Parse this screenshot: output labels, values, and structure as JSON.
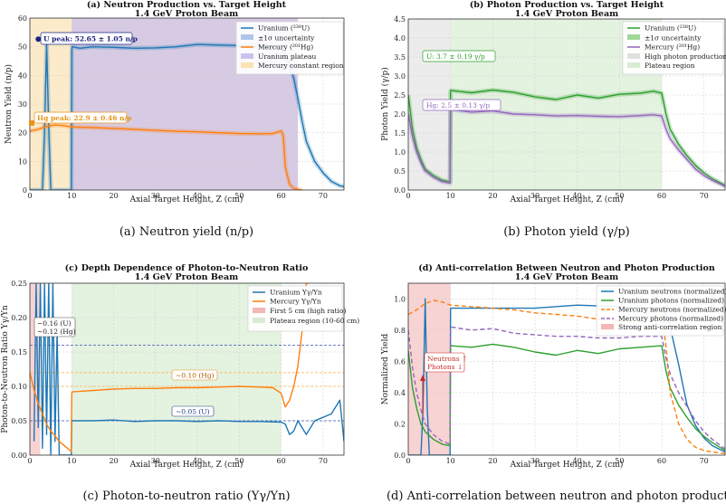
{
  "chart_data": [
    {
      "type": "line",
      "panel_id": "a",
      "title": "(a) Neutron Production vs. Target Height",
      "subtitle": "1.4 GeV Proton Beam",
      "xlabel": "Axial Target Height, Z (cm)",
      "ylabel": "Neutron Yield (n/p)",
      "xlim": [
        0,
        75
      ],
      "ylim": [
        0,
        60
      ],
      "xticks": [
        "0",
        "10",
        "20",
        "30",
        "40",
        "50",
        "60",
        "70"
      ],
      "yticks": [
        "0",
        "10",
        "20",
        "30",
        "40",
        "50",
        "60"
      ],
      "grid": true,
      "legend_position": "top-right",
      "series": [
        {
          "name": "Uranium (²³⁸U)",
          "color": "#1f77b4",
          "x": [
            0,
            1,
            2,
            3,
            3.5,
            4,
            4.5,
            5,
            6,
            8,
            9.5,
            9.9,
            10,
            10.1,
            12,
            15,
            20,
            25,
            30,
            35,
            40,
            45,
            50,
            55,
            60,
            61,
            62,
            63,
            64,
            65,
            66,
            68,
            70,
            72,
            74,
            75
          ],
          "y": [
            0,
            0,
            0,
            0,
            20,
            51.5,
            22,
            0,
            0,
            0,
            0,
            0,
            49,
            50,
            49.5,
            50,
            49.8,
            49.5,
            49.6,
            50,
            50.8,
            50.6,
            50.4,
            50.1,
            49.6,
            47,
            44,
            39,
            32,
            24,
            17,
            10,
            6,
            3,
            1.5,
            1.2
          ]
        },
        {
          "name": "Mercury (²⁰¹Hg)",
          "color": "#ff7f0e",
          "x": [
            0,
            2,
            4,
            6,
            8,
            10,
            15,
            20,
            25,
            30,
            35,
            40,
            45,
            50,
            55,
            58,
            60,
            60.5,
            61,
            62,
            63,
            64,
            65
          ],
          "y": [
            20.6,
            21.2,
            22.2,
            22.7,
            22.5,
            22,
            21.8,
            21.5,
            21.2,
            20.8,
            20.5,
            20.3,
            20.0,
            19.7,
            19.6,
            19.7,
            20.6,
            19,
            8,
            2,
            0.6,
            0.2,
            0
          ]
        }
      ],
      "bands": [
        {
          "name": "±1σ uncertainty",
          "color": "#aec7e8"
        },
        {
          "name": "Uranium plateau",
          "x": [
            10,
            64
          ],
          "color": "#8c6bb1"
        },
        {
          "name": "Mercury constant region",
          "x": [
            0,
            10
          ],
          "color": "#fbe3b4"
        }
      ],
      "annotations": [
        {
          "text": "U peak: 52.65 ± 1.05 n/p",
          "x": 4,
          "y": 52.6,
          "color": "#1a237e"
        },
        {
          "text": "Hg peak: 22.9 ± 0.46 n/p",
          "x": 1,
          "y": 22.9,
          "color": "#e69520"
        }
      ]
    },
    {
      "type": "line",
      "panel_id": "b",
      "title": "(b) Photon Production vs. Target Height",
      "subtitle": "1.4 GeV Proton Beam",
      "xlabel": "Axial Target Height, Z (cm)",
      "ylabel": "Photon Yield (γ/p)",
      "xlim": [
        0,
        75
      ],
      "ylim": [
        0,
        4.5
      ],
      "xticks": [
        "0",
        "10",
        "20",
        "30",
        "40",
        "50",
        "60",
        "70"
      ],
      "yticks": [
        "0.0",
        "0.5",
        "1.0",
        "1.5",
        "2.0",
        "2.5",
        "3.0",
        "3.5",
        "4.0",
        "4.5"
      ],
      "grid": true,
      "legend_position": "top-right",
      "series": [
        {
          "name": "Uranium (²³⁸U)",
          "color": "#2ca02c",
          "x": [
            0,
            1,
            2,
            3,
            4,
            6,
            8,
            9.9,
            10,
            10.1,
            15,
            20,
            25,
            30,
            35,
            40,
            45,
            50,
            55,
            58,
            60,
            61,
            62,
            64,
            66,
            68,
            70,
            72,
            75
          ],
          "y": [
            2.5,
            1.6,
            1.1,
            0.8,
            0.55,
            0.38,
            0.26,
            0.22,
            2.6,
            2.62,
            2.56,
            2.63,
            2.57,
            2.45,
            2.38,
            2.5,
            2.42,
            2.52,
            2.55,
            2.6,
            2.55,
            2.0,
            1.6,
            1.2,
            0.9,
            0.65,
            0.45,
            0.3,
            0.12
          ]
        },
        {
          "name": "Mercury (²⁰¹Hg)",
          "color": "#9467bd",
          "x": [
            0,
            1,
            2,
            3,
            4,
            6,
            8,
            9.9,
            10,
            10.1,
            15,
            20,
            25,
            30,
            35,
            40,
            45,
            50,
            55,
            58,
            60,
            61,
            62,
            64,
            66,
            68,
            70,
            72,
            75
          ],
          "y": [
            2.0,
            1.4,
            1.0,
            0.72,
            0.5,
            0.33,
            0.22,
            0.18,
            2.1,
            2.12,
            2.05,
            2.08,
            2.0,
            1.98,
            1.95,
            1.96,
            1.94,
            1.93,
            1.96,
            1.98,
            1.95,
            1.6,
            1.35,
            1.05,
            0.8,
            0.55,
            0.38,
            0.25,
            0.1
          ]
        }
      ],
      "bands": [
        {
          "name": "±1σ uncertainty",
          "color": "#a1d99b"
        },
        {
          "name": "High photon production",
          "x": [
            0,
            10
          ],
          "color": "#e0e0e0"
        },
        {
          "name": "Plateau region",
          "x": [
            10,
            60
          ],
          "color": "#d8ecd3"
        }
      ],
      "annotations": [
        {
          "text": "U: 3.7 ± 0.19 γ/p",
          "x": 1,
          "y": 3.3,
          "color": "#2ca02c"
        },
        {
          "text": "Hg: 2.5 ± 0.13 γ/p",
          "x": 1,
          "y": 2.1,
          "color": "#9467bd"
        }
      ]
    },
    {
      "type": "line",
      "panel_id": "c",
      "title": "(c) Depth Dependence of Photon-to-Neutron Ratio",
      "subtitle": "1.4 GeV Proton Beam",
      "xlabel": "Axial Target Height, Z (cm)",
      "ylabel": "Photon-to-Neutron Ratio Yγ/Yn",
      "xlim": [
        0,
        75
      ],
      "ylim": [
        0,
        0.25
      ],
      "xticks": [
        "0",
        "10",
        "20",
        "30",
        "40",
        "50",
        "60",
        "70"
      ],
      "yticks": [
        "0.00",
        "0.05",
        "0.10",
        "0.15",
        "0.20",
        "0.25"
      ],
      "grid": true,
      "legend_position": "top-right",
      "series": [
        {
          "name": "Uranium Yγ/Yn",
          "color": "#1f77b4",
          "x": [
            1,
            1.5,
            2,
            2.5,
            3,
            3.5,
            4,
            4.5,
            5,
            5.5,
            6,
            6.5,
            7,
            9.9,
            10,
            10.1,
            15,
            20,
            25,
            30,
            35,
            40,
            45,
            50,
            55,
            60,
            61,
            62,
            63,
            64,
            65,
            66,
            68,
            70,
            72,
            74,
            75
          ],
          "y": [
            0.02,
            0.25,
            0.04,
            0.25,
            0.01,
            0.25,
            0.03,
            0.25,
            0.0,
            0.25,
            0.02,
            0.18,
            0.0,
            0.0,
            0.048,
            0.05,
            0.05,
            0.051,
            0.049,
            0.05,
            0.05,
            0.049,
            0.05,
            0.049,
            0.049,
            0.048,
            0.045,
            0.03,
            0.035,
            0.05,
            0.04,
            0.03,
            0.05,
            0.055,
            0.06,
            0.08,
            0.02
          ]
        },
        {
          "name": "Mercury Yγ/Yn",
          "color": "#ff7f0e",
          "x": [
            0,
            1,
            2,
            3,
            4,
            5,
            6,
            7,
            8,
            9,
            9.9,
            10,
            10.1,
            15,
            20,
            25,
            30,
            35,
            40,
            45,
            50,
            55,
            58,
            60,
            61,
            62,
            63,
            64,
            65,
            65.5,
            66,
            66.5
          ],
          "y": [
            0.12,
            0.095,
            0.075,
            0.06,
            0.045,
            0.035,
            0.028,
            0.02,
            0.015,
            0.01,
            0.005,
            0.09,
            0.092,
            0.094,
            0.096,
            0.097,
            0.097,
            0.098,
            0.098,
            0.099,
            0.1,
            0.099,
            0.098,
            0.09,
            0.07,
            0.08,
            0.1,
            0.13,
            0.18,
            0.22,
            0.25,
            0.25
          ]
        }
      ],
      "reference_lines": [
        {
          "y": 0.16,
          "color": "#3f51b5"
        },
        {
          "y": 0.12,
          "color": "#ffb74d"
        },
        {
          "y": 0.1,
          "color": "#ffb74d"
        },
        {
          "y": 0.05,
          "color": "#3f51b5"
        }
      ],
      "bands": [
        {
          "name": "First 5 cm (high ratio)",
          "x": [
            0,
            2.5
          ],
          "color": "#f4b6b6"
        },
        {
          "name": "Plateau region (10-60 cm)",
          "x": [
            10,
            60
          ],
          "color": "#d8ecd3"
        }
      ],
      "annotations": [
        {
          "text": "~0.16 (U)",
          "x": 1.5,
          "y": 0.17,
          "color": "#222222"
        },
        {
          "text": "~0.12 (Hg)",
          "x": 1.5,
          "y": 0.16,
          "color": "#222222"
        },
        {
          "text": "~0.10 (Hg)",
          "x": 33,
          "y": 0.107,
          "color": "#b35900"
        },
        {
          "text": "~0.05 (U)",
          "x": 33,
          "y": 0.057,
          "color": "#1f3a8a"
        }
      ]
    },
    {
      "type": "line",
      "panel_id": "d",
      "title": "(d) Anti-correlation Between Neutron and Photon Production",
      "subtitle": "1.4 GeV Proton Beam",
      "xlabel": "Axial Target Height, Z (cm)",
      "ylabel": "Normalized Yield",
      "xlim": [
        0,
        75
      ],
      "ylim": [
        0,
        1.1
      ],
      "xticks": [
        "0",
        "10",
        "20",
        "30",
        "40",
        "50",
        "60",
        "70"
      ],
      "yticks": [
        "0.0",
        "0.2",
        "0.4",
        "0.6",
        "0.8",
        "1.0"
      ],
      "grid": true,
      "legend_position": "top-right",
      "series": [
        {
          "name": "Uranium neutrons (normalized)",
          "color": "#1f77b4",
          "dash": "solid",
          "x": [
            0,
            3,
            3.5,
            4,
            4.5,
            5,
            9.9,
            10,
            10.1,
            20,
            30,
            40,
            50,
            60,
            61,
            62,
            63,
            64,
            65,
            66,
            68,
            70,
            72,
            75
          ],
          "y": [
            0,
            0,
            0.3,
            1.0,
            0.3,
            0,
            0,
            0.93,
            0.94,
            0.94,
            0.94,
            0.96,
            0.95,
            0.94,
            0.9,
            0.82,
            0.7,
            0.58,
            0.45,
            0.32,
            0.19,
            0.11,
            0.06,
            0.02
          ]
        },
        {
          "name": "Uranium photons (normalized)",
          "color": "#2ca02c",
          "dash": "solid",
          "x": [
            0,
            1,
            2,
            3,
            4,
            6,
            8,
            9.9,
            10,
            10.1,
            15,
            20,
            25,
            30,
            35,
            40,
            45,
            50,
            55,
            60,
            61,
            62,
            64,
            66,
            68,
            70,
            72,
            75
          ],
          "y": [
            0.67,
            0.43,
            0.3,
            0.2,
            0.15,
            0.1,
            0.07,
            0.06,
            0.7,
            0.7,
            0.69,
            0.71,
            0.69,
            0.66,
            0.64,
            0.67,
            0.65,
            0.68,
            0.69,
            0.7,
            0.54,
            0.43,
            0.32,
            0.24,
            0.17,
            0.12,
            0.08,
            0.03
          ]
        },
        {
          "name": "Mercury neutrons (normalized)",
          "color": "#ff7f0e",
          "dash": "dashed",
          "x": [
            0,
            2,
            4,
            6,
            8,
            10,
            15,
            20,
            25,
            30,
            35,
            40,
            45,
            50,
            55,
            58,
            60,
            61,
            62,
            64,
            66,
            68,
            70,
            72,
            75
          ],
          "y": [
            0.9,
            0.93,
            0.97,
            0.99,
            0.98,
            0.96,
            0.95,
            0.94,
            0.93,
            0.91,
            0.9,
            0.89,
            0.87,
            0.86,
            0.86,
            0.86,
            0.9,
            0.7,
            0.4,
            0.2,
            0.1,
            0.05,
            0.03,
            0.02,
            0.01
          ]
        },
        {
          "name": "Mercury photons (normalized)",
          "color": "#9467bd",
          "dash": "dashed",
          "x": [
            0,
            1,
            2,
            3,
            4,
            6,
            8,
            9.9,
            10,
            10.1,
            15,
            20,
            25,
            30,
            35,
            40,
            45,
            50,
            55,
            60,
            61,
            62,
            64,
            66,
            68,
            70,
            72,
            75
          ],
          "y": [
            0.8,
            0.56,
            0.4,
            0.29,
            0.2,
            0.13,
            0.09,
            0.07,
            0.81,
            0.82,
            0.8,
            0.81,
            0.78,
            0.77,
            0.76,
            0.76,
            0.75,
            0.75,
            0.76,
            0.76,
            0.62,
            0.52,
            0.4,
            0.31,
            0.22,
            0.15,
            0.1,
            0.04
          ]
        }
      ],
      "bands": [
        {
          "name": "Strong anti-correlation region",
          "x": [
            0,
            10
          ],
          "color": "#f4b6b6"
        }
      ],
      "annotations": [
        {
          "text": "Neutrons ↑",
          "x": 6.5,
          "y": 0.66,
          "color": "#c62828"
        },
        {
          "text": "Photons ↓",
          "x": 6.5,
          "y": 0.6,
          "color": "#c62828"
        }
      ]
    }
  ],
  "captions": [
    "(a) Neutron yield (n/p)",
    "(b) Photon yield (γ/p)",
    "(c) Photon-to-neutron ratio (Yγ/Yn)",
    "(d) Anti-correlation between neutron and photon production"
  ]
}
